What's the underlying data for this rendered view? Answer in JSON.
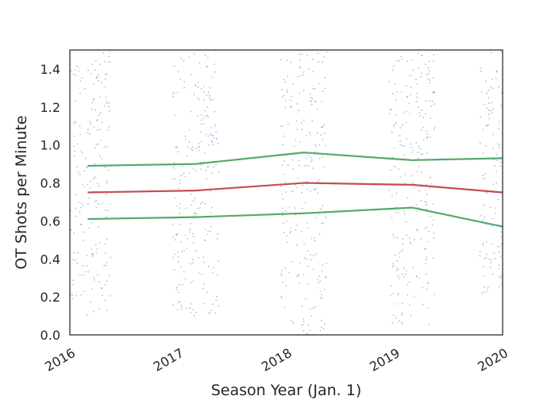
{
  "chart_data": {
    "type": "line",
    "xlabel": "Season Year (Jan. 1)",
    "ylabel": "OT Shots per Minute",
    "xlim": [
      "2016-01-01",
      "2020-01-01"
    ],
    "ylim": [
      0,
      1.5
    ],
    "xticks": [
      "2016",
      "2017",
      "2018",
      "2019",
      "2020"
    ],
    "yticks": [
      "0.0",
      "0.2",
      "0.4",
      "0.6",
      "0.8",
      "1.0",
      "1.2",
      "1.4"
    ],
    "grid": false,
    "legend": "none",
    "x": [
      "2016-03-01",
      "2017-03-01",
      "2018-03-01",
      "2019-03-01",
      "2020-01-01"
    ],
    "series": [
      {
        "values": [
          0.89,
          0.9,
          0.96,
          0.92,
          0.93
        ],
        "color": "#55a868"
      },
      {
        "values": [
          0.75,
          0.76,
          0.8,
          0.79,
          0.75
        ],
        "color": "#c44e52"
      },
      {
        "values": [
          0.61,
          0.62,
          0.64,
          0.67,
          0.57
        ],
        "color": "#55a868"
      }
    ],
    "scatter": {
      "color": "#4c72b0",
      "clusters": [
        {
          "center": "2016-03-01",
          "range": [
            0.1,
            1.5
          ]
        },
        {
          "center": "2017-03-01",
          "range": [
            0.1,
            1.5
          ]
        },
        {
          "center": "2018-03-01",
          "range": [
            0.0,
            1.5
          ]
        },
        {
          "center": "2019-03-01",
          "range": [
            0.05,
            1.5
          ]
        },
        {
          "center": "2020-01-01",
          "range": [
            0.2,
            1.5
          ]
        }
      ]
    }
  }
}
